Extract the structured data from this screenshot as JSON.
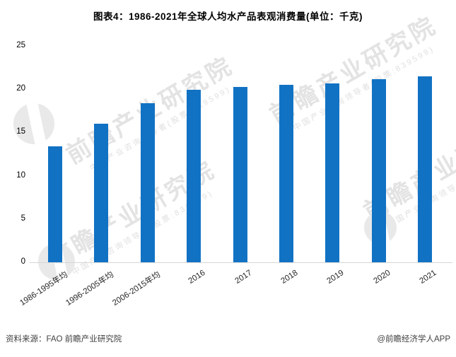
{
  "title": "图表4：1986-2021年全球人均水产品表观消费量(单位：千克)",
  "chart_data": {
    "type": "bar",
    "title": "图表4：1986-2021年全球人均水产品表观消费量(单位：千克)",
    "categories": [
      "1986-1995年均",
      "1996-2005年均",
      "2006-2015年均",
      "2016",
      "2017",
      "2018",
      "2019",
      "2020",
      "2021"
    ],
    "values": [
      13.4,
      16.0,
      18.4,
      19.9,
      20.3,
      20.5,
      20.7,
      21.2,
      21.5
    ],
    "xlabel": "",
    "ylabel": "",
    "unit": "千克",
    "ylim": [
      0,
      25
    ],
    "yticks": [
      0,
      5,
      10,
      15,
      20,
      25
    ],
    "grid": false,
    "legend": false,
    "bar_color": "#1172c4"
  },
  "footer": {
    "source": "资料来源：FAO 前瞻产业研究院",
    "credit": "@前瞻经济学人APP"
  },
  "watermark": {
    "big": "前瞻产业研究院",
    "small": "中国产业咨询领导者(股票:839599)"
  }
}
